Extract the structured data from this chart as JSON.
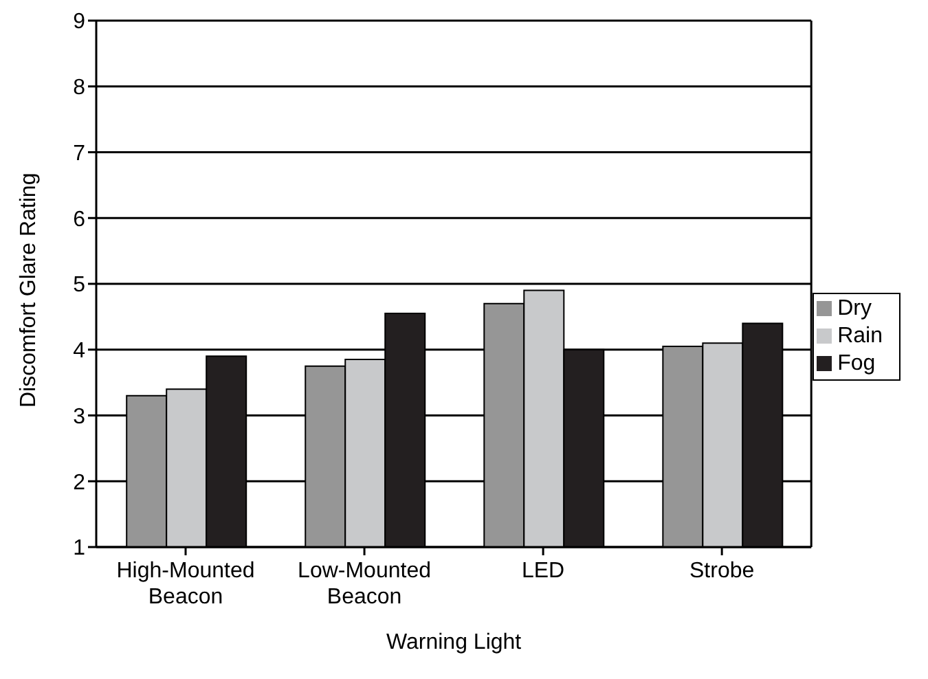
{
  "chart_data": {
    "type": "bar",
    "xlabel": "Warning Light",
    "ylabel": "Discomfort Glare Rating",
    "categories": [
      "High-Mounted Beacon",
      "Low-Mounted Beacon",
      "LED",
      "Strobe"
    ],
    "series": [
      {
        "name": "Dry",
        "color": "#969696",
        "values": [
          3.3,
          3.75,
          4.7,
          4.05
        ]
      },
      {
        "name": "Rain",
        "color": "#c8c9cb",
        "values": [
          3.4,
          3.85,
          4.9,
          4.1
        ]
      },
      {
        "name": "Fog",
        "color": "#231f20",
        "values": [
          3.9,
          4.55,
          4.0,
          4.4
        ]
      }
    ],
    "ylim": [
      1,
      9
    ],
    "yticks": [
      1,
      2,
      3,
      4,
      5,
      6,
      7,
      8,
      9
    ],
    "grid": "y",
    "legend": "right"
  }
}
